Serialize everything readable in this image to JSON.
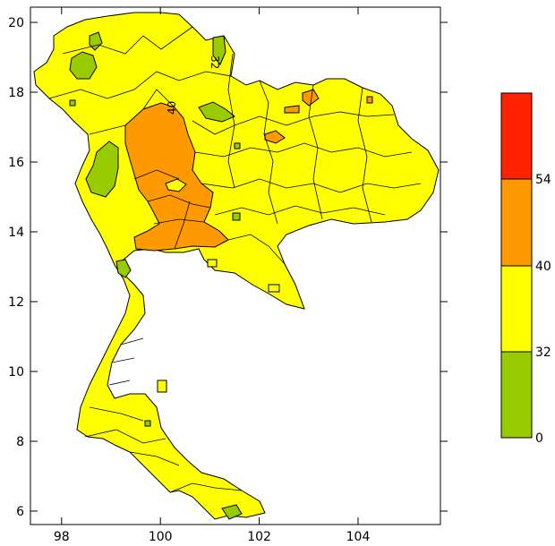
{
  "map": {
    "x_ticks": [
      "98",
      "100",
      "102",
      "104"
    ],
    "y_ticks": [
      "6",
      "8",
      "10",
      "12",
      "14",
      "16",
      "18",
      "20"
    ],
    "lon_range": [
      97.4,
      105.7
    ],
    "lat_range": [
      5.6,
      20.5
    ],
    "contour_labels": [
      "32",
      "40"
    ]
  },
  "colorbar": {
    "bins": [
      {
        "from": "0",
        "to": "32",
        "color": "#99cc00"
      },
      {
        "from": "32",
        "to": "40",
        "color": "#ffff00"
      },
      {
        "from": "40",
        "to": "54",
        "color": "#ff9900"
      },
      {
        "from": "54",
        "to": "",
        "color": "#ff2200"
      }
    ],
    "labels": [
      "0",
      "32",
      "40",
      "54"
    ]
  }
}
